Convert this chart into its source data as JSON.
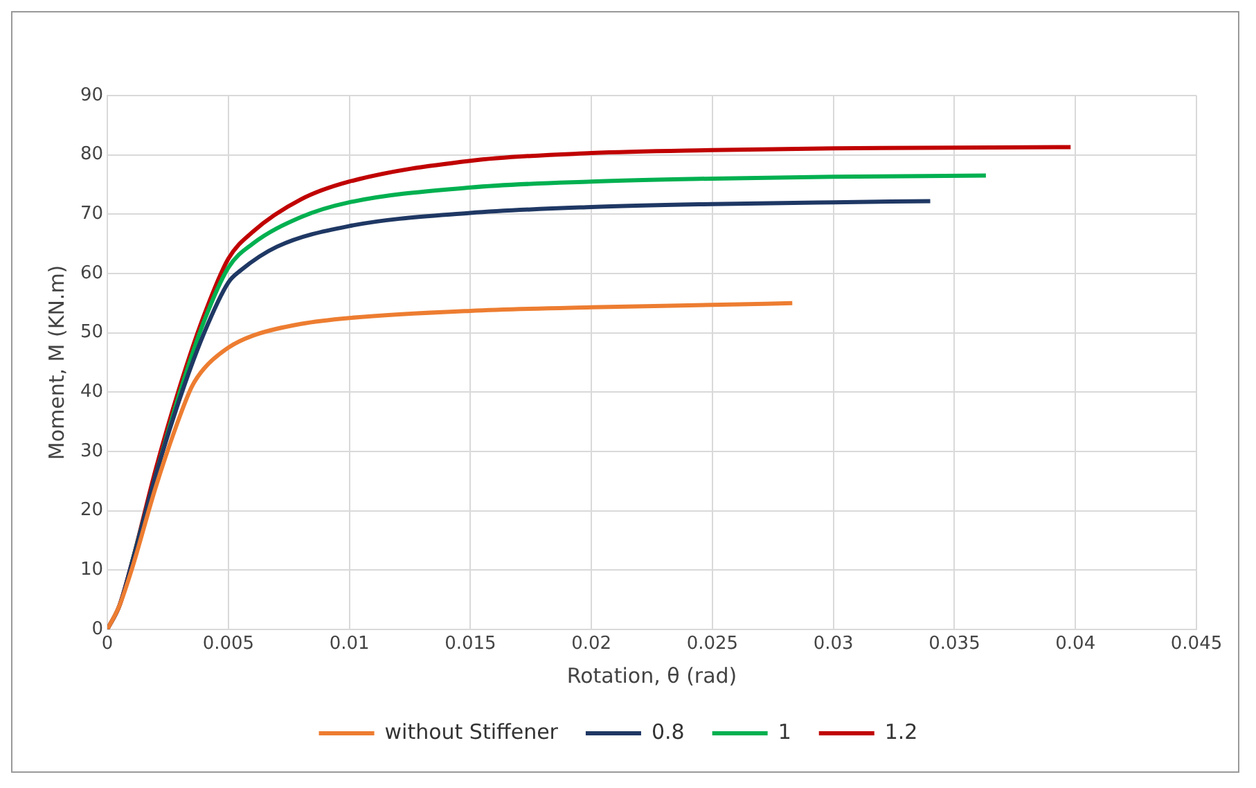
{
  "chart_data": {
    "type": "line",
    "xlabel": "Rotation, θ (rad)",
    "ylabel": "Moment, M (KN.m)",
    "xlim": [
      0,
      0.045
    ],
    "xticks": [
      0,
      0.005,
      0.01,
      0.015,
      0.02,
      0.025,
      0.03,
      0.035,
      0.04,
      0.045
    ],
    "ylim": [
      0,
      90
    ],
    "yticks": [
      0,
      10,
      20,
      30,
      40,
      50,
      60,
      70,
      80,
      90
    ],
    "grid": true,
    "legend": "bottom",
    "marker": "none",
    "line_style": "solid",
    "series": [
      {
        "name": "without Stiffener",
        "color": "#ed7d31",
        "x": [
          0,
          0.0005,
          0.001,
          0.002,
          0.003,
          0.0035,
          0.004,
          0.005,
          0.006,
          0.008,
          0.01,
          0.015,
          0.02,
          0.025,
          0.0283
        ],
        "values": [
          0,
          4,
          10,
          24,
          36,
          41,
          44,
          47.5,
          49.5,
          51.5,
          52.5,
          53.7,
          54.3,
          54.7,
          55
        ]
      },
      {
        "name": "0.8",
        "color": "#1f3864",
        "x": [
          0,
          0.0005,
          0.001,
          0.002,
          0.003,
          0.004,
          0.005,
          0.0055,
          0.007,
          0.01,
          0.015,
          0.02,
          0.025,
          0.03,
          0.034
        ],
        "values": [
          0,
          4,
          11,
          26,
          39,
          50,
          58.5,
          60.5,
          64.5,
          68,
          70.2,
          71.2,
          71.7,
          72,
          72.2
        ]
      },
      {
        "name": "1",
        "color": "#00b050",
        "x": [
          0.001,
          0.002,
          0.003,
          0.004,
          0.005,
          0.006,
          0.008,
          0.01,
          0.015,
          0.02,
          0.025,
          0.03,
          0.0363
        ],
        "values": [
          11,
          26,
          40,
          52,
          61,
          65,
          69.5,
          72,
          74.5,
          75.5,
          76,
          76.3,
          76.5
        ]
      },
      {
        "name": "1.2",
        "color": "#c00000",
        "x": [
          0,
          0.0005,
          0.001,
          0.002,
          0.003,
          0.004,
          0.005,
          0.006,
          0.008,
          0.01,
          0.015,
          0.02,
          0.025,
          0.03,
          0.0398
        ],
        "values": [
          0,
          4,
          11,
          27,
          41,
          53,
          62.5,
          67,
          72.5,
          75.5,
          79,
          80.3,
          80.8,
          81.1,
          81.3
        ]
      }
    ]
  }
}
